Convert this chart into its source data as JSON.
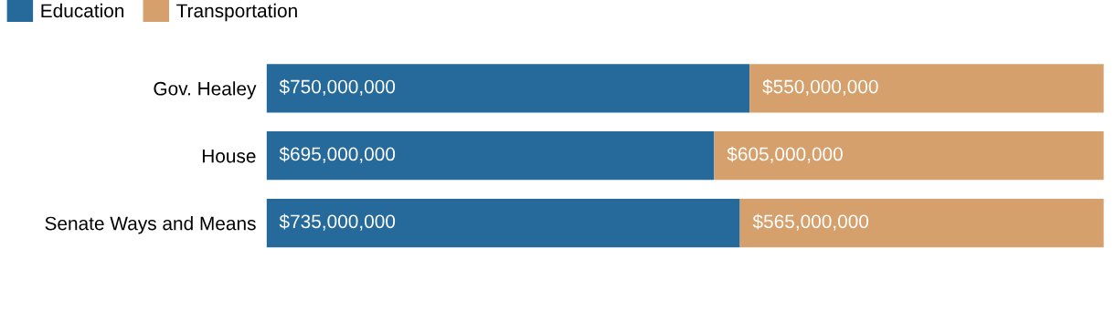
{
  "chart_data": {
    "type": "bar",
    "orientation": "horizontal",
    "stacked": true,
    "categories": [
      "Gov. Healey",
      "House",
      "Senate Ways and Means"
    ],
    "series": [
      {
        "name": "Education",
        "color": "#266a9c",
        "values": [
          750000000,
          695000000,
          735000000
        ],
        "value_labels": [
          "$750,000,000",
          "$695,000,000",
          "$735,000,000"
        ]
      },
      {
        "name": "Transportation",
        "color": "#d6a06c",
        "values": [
          550000000,
          605000000,
          565000000
        ],
        "value_labels": [
          "$550,000,000",
          "$605,000,000",
          "$565,000,000"
        ]
      }
    ],
    "legend": "top left",
    "tick_labels": "y",
    "grid": false
  }
}
